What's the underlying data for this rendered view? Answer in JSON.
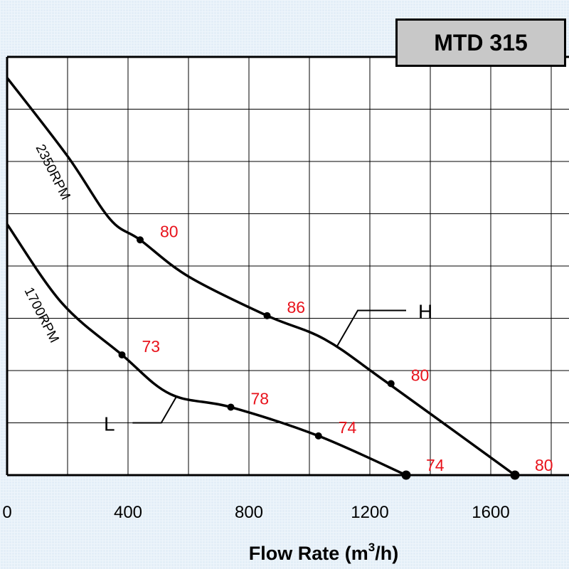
{
  "chart_data": {
    "type": "line",
    "title": "MTD 315",
    "xlabel": "Flow Rate (m³/h)",
    "ylabel": "",
    "xlim": [
      0,
      1800
    ],
    "x_ticks": [
      "0",
      "400",
      "800",
      "1200",
      "1600"
    ],
    "grid": true,
    "series": [
      {
        "name": "H",
        "curve_label": "2350RPM",
        "color": "#000000",
        "points": [
          {
            "x": 0,
            "y": 7.6
          },
          {
            "x": 200,
            "y": 6.1
          },
          {
            "x": 340,
            "y": 4.9
          },
          {
            "x": 440,
            "y": 4.5
          },
          {
            "x": 600,
            "y": 3.8
          },
          {
            "x": 860,
            "y": 3.05
          },
          {
            "x": 1050,
            "y": 2.6
          },
          {
            "x": 1250,
            "y": 1.8
          },
          {
            "x": 1680,
            "y": 0.0
          }
        ],
        "markers": [
          {
            "x": 440,
            "y": 4.5,
            "label": "80"
          },
          {
            "x": 860,
            "y": 3.05,
            "label": "86"
          },
          {
            "x": 1270,
            "y": 1.75,
            "label": "80"
          },
          {
            "x": 1680,
            "y": 0.0,
            "label": "80"
          }
        ]
      },
      {
        "name": "L",
        "curve_label": "1700RPM",
        "color": "#000000",
        "points": [
          {
            "x": 0,
            "y": 4.8
          },
          {
            "x": 180,
            "y": 3.3
          },
          {
            "x": 380,
            "y": 2.3
          },
          {
            "x": 540,
            "y": 1.55
          },
          {
            "x": 740,
            "y": 1.3
          },
          {
            "x": 1030,
            "y": 0.75
          },
          {
            "x": 1320,
            "y": 0.0
          }
        ],
        "markers": [
          {
            "x": 380,
            "y": 2.3,
            "label": "73"
          },
          {
            "x": 740,
            "y": 1.3,
            "label": "78"
          },
          {
            "x": 1030,
            "y": 0.75,
            "label": "74"
          },
          {
            "x": 1320,
            "y": 0.0,
            "label": "74"
          }
        ]
      }
    ],
    "efficiency_label_color": "#e8121b"
  }
}
